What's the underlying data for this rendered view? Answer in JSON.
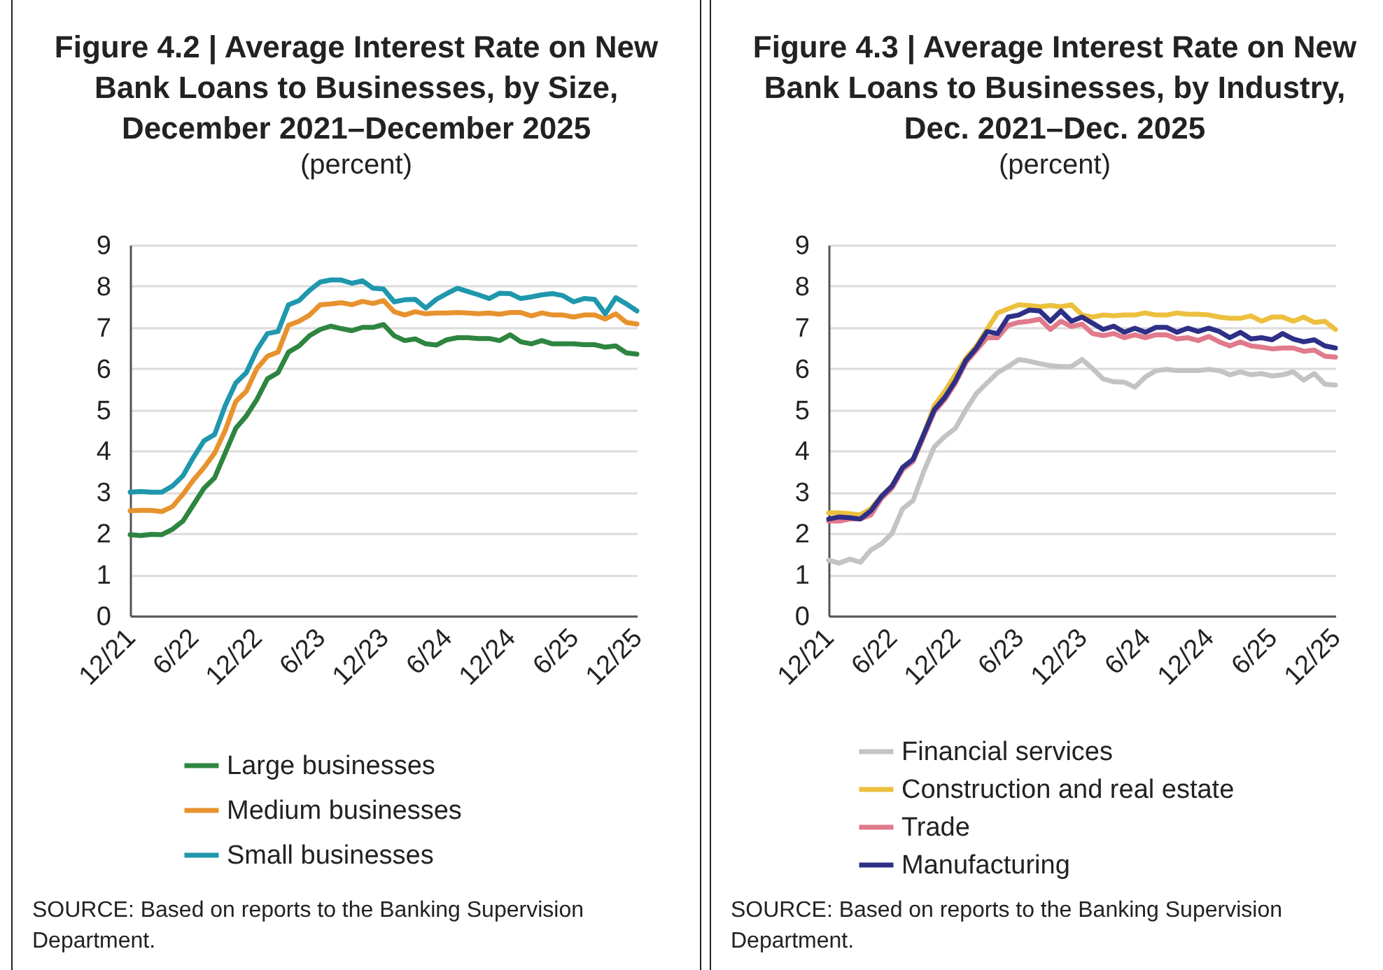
{
  "chart_data": [
    {
      "type": "line",
      "title": "Figure 4.2 | Average Interest Rate on New Bank Loans to Businesses, by Size, December 2021–December 2025",
      "subtitle": "(percent)",
      "annotations": [
        "SOURCE: Based on reports to the Banking Supervision Department."
      ],
      "categories": [
        "12/21",
        null,
        null,
        null,
        null,
        null,
        "6/22",
        null,
        null,
        null,
        null,
        null,
        "12/22",
        null,
        null,
        null,
        null,
        null,
        "6/23",
        null,
        null,
        null,
        null,
        null,
        "12/23",
        null,
        null,
        null,
        null,
        null,
        "6/24",
        null,
        null,
        null,
        null,
        null,
        "12/24",
        null,
        null,
        null,
        null,
        null,
        "6/25",
        null,
        null,
        null,
        null,
        null,
        "12/25"
      ],
      "series": [
        {
          "name": "Large businesses",
          "color": "#2e8540",
          "values": [
            1.97,
            1.95,
            1.98,
            1.97,
            2.1,
            2.3,
            2.7,
            3.1,
            3.35,
            3.95,
            4.55,
            4.85,
            5.25,
            5.75,
            5.9,
            6.4,
            6.55,
            6.8,
            6.95,
            7.03,
            6.97,
            6.92,
            7.0,
            7.0,
            7.07,
            6.8,
            6.68,
            6.72,
            6.6,
            6.57,
            6.7,
            6.75,
            6.75,
            6.73,
            6.73,
            6.68,
            6.82,
            6.65,
            6.6,
            6.68,
            6.6,
            6.6,
            6.6,
            6.58,
            6.58,
            6.52,
            6.55,
            6.38,
            6.35
          ]
        },
        {
          "name": "Medium businesses",
          "color": "#e8922e",
          "values": [
            2.55,
            2.56,
            2.56,
            2.53,
            2.65,
            2.95,
            3.3,
            3.6,
            3.95,
            4.5,
            5.2,
            5.45,
            6.0,
            6.3,
            6.4,
            7.05,
            7.15,
            7.3,
            7.55,
            7.57,
            7.6,
            7.55,
            7.63,
            7.58,
            7.65,
            7.38,
            7.3,
            7.38,
            7.33,
            7.35,
            7.35,
            7.36,
            7.35,
            7.33,
            7.35,
            7.32,
            7.36,
            7.36,
            7.28,
            7.35,
            7.3,
            7.3,
            7.25,
            7.3,
            7.3,
            7.2,
            7.33,
            7.12,
            7.08
          ]
        },
        {
          "name": "Small businesses",
          "color": "#1f97ad",
          "values": [
            3.0,
            3.02,
            3.0,
            3.0,
            3.15,
            3.4,
            3.85,
            4.25,
            4.4,
            5.1,
            5.65,
            5.9,
            6.45,
            6.85,
            6.9,
            7.55,
            7.65,
            7.9,
            8.1,
            8.15,
            8.15,
            8.07,
            8.13,
            7.95,
            7.93,
            7.62,
            7.67,
            7.68,
            7.47,
            7.68,
            7.82,
            7.95,
            7.87,
            7.79,
            7.7,
            7.83,
            7.82,
            7.7,
            7.74,
            7.79,
            7.82,
            7.77,
            7.62,
            7.7,
            7.68,
            7.33,
            7.72,
            7.57,
            7.4
          ]
        }
      ],
      "ylim": [
        0,
        9
      ],
      "yticks": [
        0,
        1,
        2,
        3,
        4,
        5,
        6,
        7,
        8,
        9
      ],
      "grid": "y",
      "legend": "bottom",
      "line_style": "solid"
    },
    {
      "type": "line",
      "title": "Figure 4.3 | Average Interest Rate on New Bank Loans to Businesses, by Industry, Dec. 2021–Dec. 2025",
      "subtitle": "(percent)",
      "annotations": [
        "SOURCE: Based on reports to the Banking Supervision Department."
      ],
      "categories": [
        "12/21",
        null,
        null,
        null,
        null,
        null,
        "6/22",
        null,
        null,
        null,
        null,
        null,
        "12/22",
        null,
        null,
        null,
        null,
        null,
        "6/23",
        null,
        null,
        null,
        null,
        null,
        "12/23",
        null,
        null,
        null,
        null,
        null,
        "6/24",
        null,
        null,
        null,
        null,
        null,
        "12/24",
        null,
        null,
        null,
        null,
        null,
        "6/25",
        null,
        null,
        null,
        null,
        null,
        "12/25"
      ],
      "series": [
        {
          "name": "Financial services",
          "color": "#c3c3c3",
          "values": [
            1.35,
            1.28,
            1.38,
            1.3,
            1.6,
            1.75,
            2.0,
            2.6,
            2.8,
            3.5,
            4.1,
            4.35,
            4.55,
            5.0,
            5.4,
            5.65,
            5.9,
            6.05,
            6.22,
            6.18,
            6.12,
            6.07,
            6.05,
            6.05,
            6.22,
            6.0,
            5.75,
            5.68,
            5.67,
            5.55,
            5.8,
            5.95,
            5.98,
            5.95,
            5.95,
            5.95,
            5.98,
            5.95,
            5.85,
            5.92,
            5.85,
            5.88,
            5.82,
            5.85,
            5.92,
            5.72,
            5.88,
            5.62,
            5.6
          ]
        },
        {
          "name": "Construction and real estate",
          "color": "#ecc03e",
          "values": [
            2.5,
            2.5,
            2.48,
            2.45,
            2.6,
            2.9,
            3.15,
            3.6,
            3.8,
            4.4,
            5.1,
            5.45,
            5.85,
            6.25,
            6.55,
            6.95,
            7.35,
            7.45,
            7.55,
            7.53,
            7.5,
            7.53,
            7.5,
            7.55,
            7.3,
            7.25,
            7.3,
            7.28,
            7.3,
            7.3,
            7.35,
            7.3,
            7.3,
            7.35,
            7.32,
            7.32,
            7.3,
            7.25,
            7.22,
            7.22,
            7.28,
            7.15,
            7.25,
            7.25,
            7.15,
            7.25,
            7.12,
            7.15,
            6.95
          ]
        },
        {
          "name": "Trade",
          "color": "#e07a8c",
          "values": [
            2.3,
            2.3,
            2.35,
            2.35,
            2.45,
            2.85,
            3.1,
            3.55,
            3.75,
            4.35,
            4.95,
            5.25,
            5.65,
            6.15,
            6.45,
            6.75,
            6.75,
            7.05,
            7.12,
            7.15,
            7.2,
            6.95,
            7.15,
            7.02,
            7.08,
            6.85,
            6.8,
            6.85,
            6.75,
            6.82,
            6.75,
            6.82,
            6.82,
            6.72,
            6.75,
            6.68,
            6.78,
            6.65,
            6.55,
            6.65,
            6.55,
            6.52,
            6.48,
            6.5,
            6.5,
            6.42,
            6.45,
            6.3,
            6.28
          ]
        },
        {
          "name": "Manufacturing",
          "color": "#2e2f86",
          "values": [
            2.35,
            2.4,
            2.38,
            2.35,
            2.55,
            2.9,
            3.15,
            3.6,
            3.8,
            4.4,
            5.0,
            5.3,
            5.7,
            6.2,
            6.5,
            6.9,
            6.85,
            7.25,
            7.3,
            7.42,
            7.4,
            7.15,
            7.4,
            7.15,
            7.25,
            7.1,
            6.95,
            7.03,
            6.88,
            6.98,
            6.88,
            7.0,
            7.0,
            6.88,
            6.98,
            6.9,
            6.98,
            6.9,
            6.75,
            6.88,
            6.72,
            6.75,
            6.7,
            6.85,
            6.72,
            6.65,
            6.7,
            6.55,
            6.5
          ]
        }
      ],
      "ylim": [
        0,
        9
      ],
      "yticks": [
        0,
        1,
        2,
        3,
        4,
        5,
        6,
        7,
        8,
        9
      ],
      "grid": "y",
      "legend": "bottom",
      "line_style": "solid"
    }
  ]
}
